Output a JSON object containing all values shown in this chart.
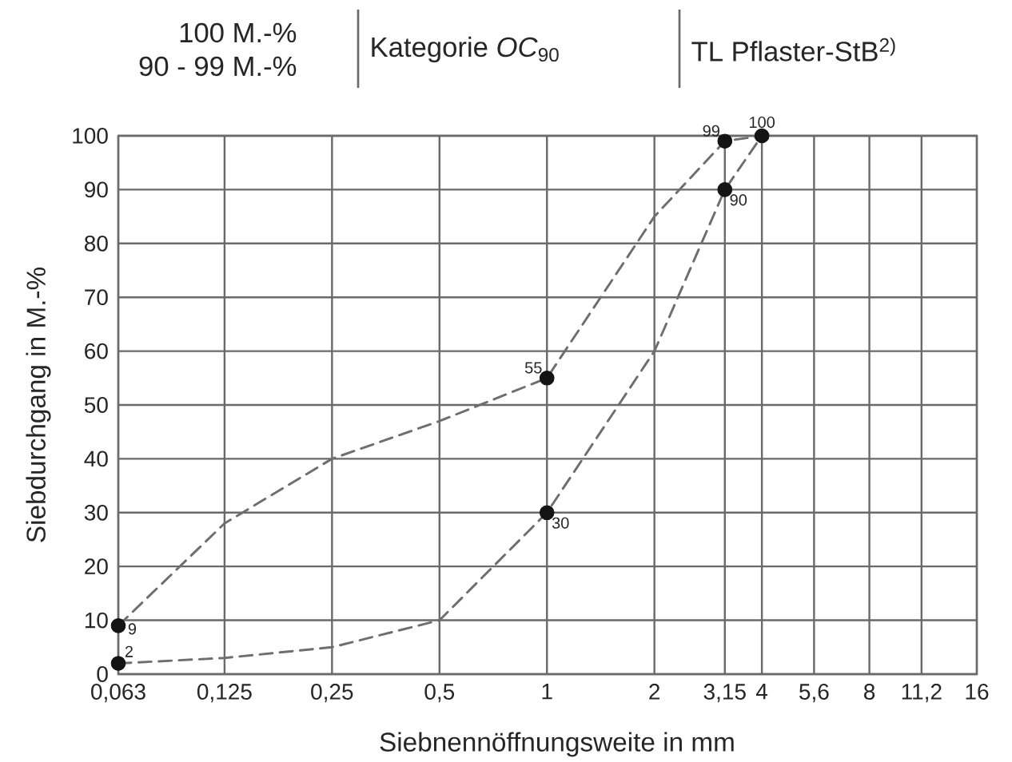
{
  "chart_data": {
    "type": "line",
    "annotations": [
      "100 M.-%",
      "90 - 99 M.-%",
      "Kategorie *OC*$_{90}$",
      "TL Pflaster-StB$^{2)}$"
    ],
    "xlabel": "Siebnennöffnungsweite in mm",
    "ylabel": "Siebdurchgang in M.-%",
    "log": "x",
    "xlim": [
      0.063,
      16
    ],
    "xticks": [
      {
        "value": 0.063,
        "label": "0,063"
      },
      {
        "value": 0.125,
        "label": "0,125"
      },
      {
        "value": 0.25,
        "label": "0,25"
      },
      {
        "value": 0.5,
        "label": "0,5"
      },
      1,
      2,
      {
        "value": 3.15,
        "label": "3,15"
      },
      4,
      {
        "value": 5.6,
        "label": "5,6"
      },
      8,
      {
        "value": 11.2,
        "label": "11,2"
      },
      16
    ],
    "ylim": [
      0,
      100
    ],
    "yticks": [
      0,
      10,
      20,
      30,
      40,
      50,
      60,
      70,
      80,
      90,
      100
    ],
    "grid": true,
    "line_style": "dashed",
    "series": [
      {
        "color": "#6e6e6e",
        "x": [
          0.063,
          0.125,
          0.25,
          0.5,
          1,
          2,
          3.15,
          4
        ],
        "values": [
          9,
          28,
          40,
          47,
          55,
          85,
          99,
          100
        ]
      },
      {
        "color": "#6e6e6e",
        "x": [
          0.063,
          0.125,
          0.25,
          0.5,
          1,
          2,
          3.15,
          4
        ],
        "values": [
          2,
          3,
          5,
          10,
          30,
          60,
          90,
          100
        ]
      },
      {
        "type": "scatter",
        "color": "#141414",
        "marker": "circle",
        "x": [
          0.063,
          0.063,
          1,
          1,
          3.15,
          3.15,
          4
        ],
        "values": [
          9,
          2,
          55,
          30,
          99,
          90,
          100
        ],
        "value_labels": [
          "9",
          "2",
          "55",
          "30",
          "99",
          "90",
          "100"
        ]
      }
    ]
  }
}
